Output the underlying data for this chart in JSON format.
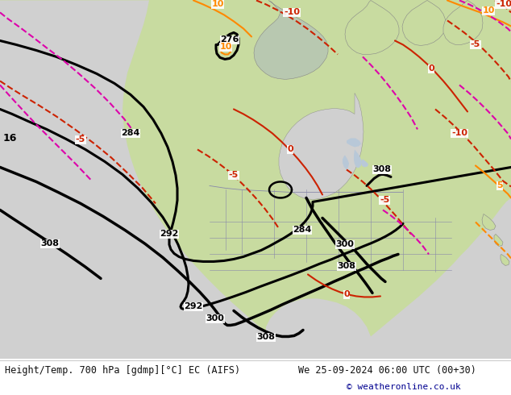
{
  "title_left": "Height/Temp. 700 hPa [gdmp][°C] EC (AIFS)",
  "title_right": "We 25-09-2024 06:00 UTC (00+30)",
  "copyright": "© weatheronline.co.uk",
  "ocean_color": "#d0d0d0",
  "land_color": "#c8dba0",
  "mountain_color": "#b0b0b0",
  "footer_bg": "#ffffff",
  "black_contour_color": "#000000",
  "red_contour_color": "#cc2200",
  "magenta_contour_color": "#dd00aa",
  "orange_contour_color": "#ff8800",
  "figsize": [
    6.34,
    4.9
  ],
  "dpi": 100
}
